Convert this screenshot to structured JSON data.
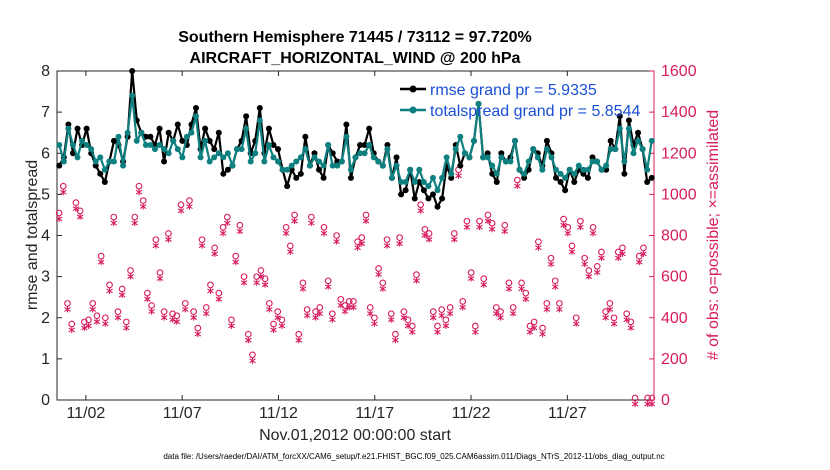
{
  "chart_data": {
    "type": "line",
    "title_line1": "Southern Hemisphere 71445 / 73112 = 97.720%",
    "title_line2": "AIRCRAFT_HORIZONTAL_WIND @ 200 hPa",
    "xlabel": "Nov.01,2012 00:00:00 start",
    "ylabel_left": "rmse and totalspread",
    "ylabel_right": "# of obs: o=possible; ×=assimilated",
    "footnote": "data file: /Users/raeder/DAI/ATM_forcXX/CAM6_setup/f.e21.FHIST_BGC.f09_025.CAM6assim.011/Diags_NTrS_2012-11/obs_diag_output.nc",
    "x_range_days": [
      0.5,
      31.5
    ],
    "ylim_left": [
      0,
      8
    ],
    "ylim_right": [
      0,
      1600
    ],
    "xtick_days": [
      2,
      7,
      12,
      17,
      22,
      27
    ],
    "xtick_labels": [
      "11/02",
      "11/07",
      "11/12",
      "11/17",
      "11/22",
      "11/27"
    ],
    "yticks_left": [
      "0",
      "1",
      "2",
      "3",
      "4",
      "5",
      "6",
      "7",
      "8"
    ],
    "yticks_right": [
      "0",
      "200",
      "400",
      "600",
      "800",
      "1000",
      "1200",
      "1400",
      "1600"
    ],
    "colors": {
      "rmse": "#000000",
      "spread": "#0f8080",
      "obs": "#d81b60",
      "legend_text": "#1a4fd6"
    },
    "legend": [
      {
        "name": "rmse grand pr = 5.9335",
        "color": "#000000"
      },
      {
        "name": "totalspread grand pr = 5.8544",
        "color": "#0f8080"
      }
    ],
    "series": [
      {
        "name": "rmse",
        "axis": "left",
        "marker": "dot",
        "values": [
          5.7,
          5.9,
          6.7,
          6.0,
          6.6,
          6.2,
          6.6,
          6.0,
          5.7,
          5.5,
          5.3,
          5.8,
          6.3,
          6.2,
          5.8,
          6.4,
          8.0,
          6.8,
          6.5,
          6.4,
          6.4,
          6.2,
          6.6,
          5.8,
          6.5,
          6.3,
          6.7,
          6.3,
          6.2,
          6.7,
          7.1,
          6.1,
          6.6,
          6.3,
          6.1,
          6.5,
          5.5,
          5.6,
          5.7,
          6.1,
          6.3,
          6.9,
          6.0,
          6.3,
          7.1,
          6.0,
          6.6,
          6.2,
          6.1,
          5.6,
          5.2,
          5.6,
          5.4,
          5.5,
          6.4,
          5.7,
          6.0,
          5.6,
          5.4,
          6.2,
          6.0,
          5.8,
          5.8,
          6.7,
          5.4,
          5.9,
          6.2,
          6.2,
          6.6,
          6.0,
          5.8,
          5.7,
          6.2,
          5.4,
          5.9,
          5.0,
          5.1,
          5.6,
          4.9,
          5.3,
          5.1,
          4.9,
          5.0,
          4.7,
          4.9,
          5.7,
          5.4,
          6.2,
          5.7,
          6.0,
          5.9,
          6.3,
          7.2,
          5.9,
          6.0,
          5.5,
          5.3,
          6.0,
          5.8,
          5.9,
          6.3,
          5.6,
          5.4,
          5.6,
          6.1,
          6.0,
          5.7,
          6.3,
          6.0,
          5.4,
          5.3,
          5.1,
          5.6,
          5.3,
          5.6,
          5.5,
          5.4,
          5.9,
          5.8,
          5.6,
          5.6,
          6.3,
          6.1,
          6.9,
          5.5,
          6.8,
          6.2,
          6.5,
          6.1,
          5.3,
          5.4
        ]
      },
      {
        "name": "totalspread",
        "axis": "left",
        "marker": "dot",
        "values": [
          6.2,
          5.8,
          6.6,
          6.2,
          5.9,
          6.3,
          6.2,
          6.1,
          5.8,
          5.9,
          5.6,
          5.8,
          5.8,
          6.4,
          5.7,
          6.5,
          7.4,
          6.3,
          6.5,
          6.2,
          6.2,
          6.1,
          6.2,
          6.1,
          6.0,
          6.3,
          6.1,
          5.9,
          6.4,
          6.5,
          6.9,
          5.9,
          6.3,
          5.8,
          5.9,
          6.0,
          5.9,
          6.0,
          5.7,
          6.1,
          6.1,
          6.6,
          5.8,
          6.0,
          6.8,
          5.8,
          6.2,
          5.9,
          5.8,
          5.6,
          5.6,
          5.7,
          5.8,
          5.9,
          6.1,
          5.7,
          5.9,
          5.8,
          5.7,
          6.2,
          5.7,
          5.7,
          5.8,
          6.4,
          5.6,
          5.9,
          6.0,
          6.0,
          6.2,
          5.9,
          5.8,
          5.7,
          6.1,
          5.4,
          5.7,
          5.3,
          5.3,
          5.6,
          5.3,
          5.6,
          5.3,
          5.2,
          5.4,
          5.1,
          5.4,
          5.9,
          5.5,
          6.1,
          6.4,
          6.0,
          5.9,
          6.3,
          7.2,
          5.9,
          5.9,
          5.7,
          5.5,
          5.9,
          5.8,
          5.8,
          6.3,
          5.6,
          5.5,
          5.8,
          6.1,
          5.9,
          5.6,
          6.1,
          5.9,
          5.6,
          5.5,
          5.4,
          5.6,
          5.5,
          5.7,
          5.6,
          5.6,
          5.8,
          5.8,
          5.6,
          5.7,
          6.1,
          6.1,
          6.6,
          5.8,
          6.6,
          6.0,
          6.3,
          6.1,
          5.6,
          6.3
        ]
      },
      {
        "name": "obs_possible",
        "axis": "right",
        "marker": "circle",
        "values": [
          900,
          1030,
          460,
          360,
          950,
          910,
          370,
          380,
          460,
          400,
          690,
          390,
          550,
          880,
          420,
          530,
          370,
          620,
          880,
          1030,
          960,
          510,
          450,
          770,
          610,
          420,
          800,
          410,
          400,
          940,
          460,
          960,
          420,
          340,
          770,
          440,
          550,
          730,
          510,
          830,
          880,
          380,
          690,
          840,
          590,
          310,
          210,
          590,
          620,
          580,
          460,
          360,
          420,
          380,
          830,
          740,
          890,
          310,
          560,
          430,
          880,
          420,
          440,
          830,
          570,
          410,
          790,
          480,
          450,
          470,
          470,
          760,
          780,
          890,
          440,
          390,
          630,
          560,
          770,
          410,
          310,
          780,
          420,
          380,
          350,
          600,
          940,
          820,
          800,
          420,
          350,
          430,
          380,
          440,
          800,
          1110,
          470,
          860,
          610,
          350,
          860,
          580,
          890,
          850,
          440,
          420,
          840,
          560,
          440,
          1060,
          560,
          510,
          350,
          370,
          760,
          340,
          460,
          680,
          570,
          460,
          870,
          830,
          740,
          390,
          860,
          680,
          620,
          830,
          640,
          710,
          420,
          460,
          390,
          710,
          730,
          410,
          370,
          0,
          690,
          730,
          0,
          0
        ]
      }
    ]
  }
}
